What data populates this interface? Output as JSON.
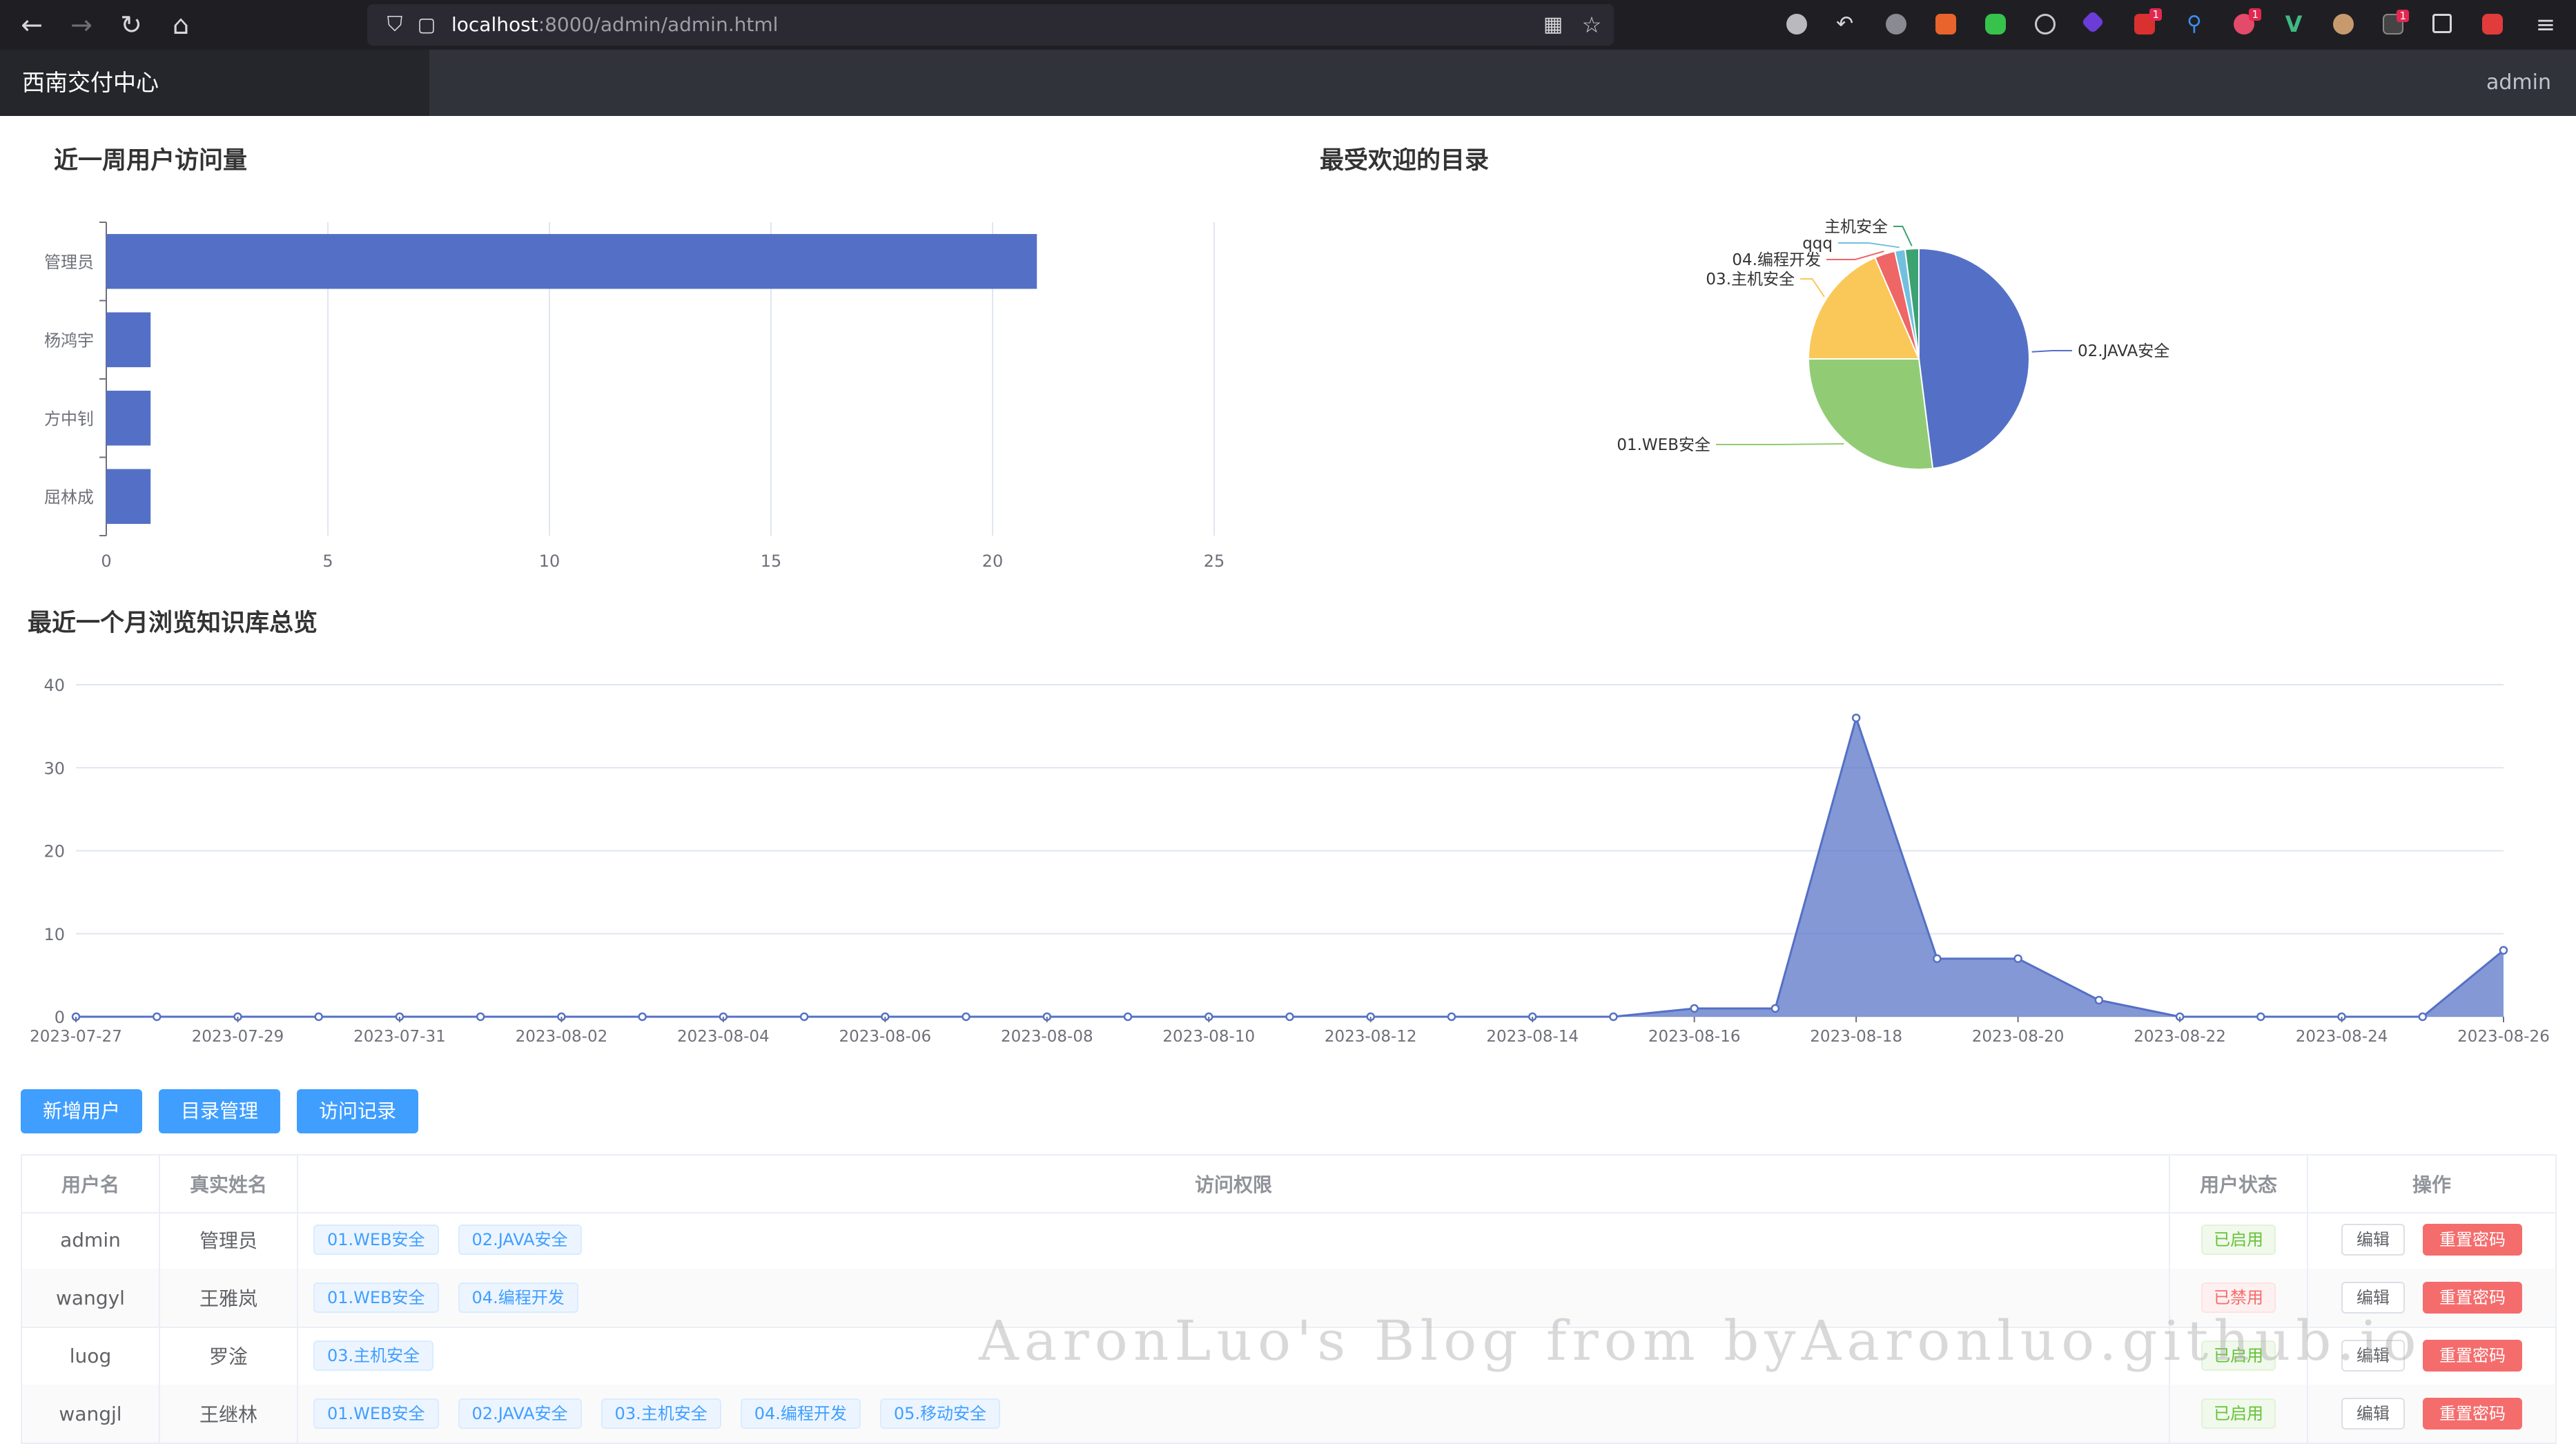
{
  "browser": {
    "url_host": "localhost",
    "url_rest": ":8000/admin/admin.html",
    "ext_badges": [
      "1",
      "1",
      "1"
    ]
  },
  "header": {
    "brand": "西南交付中心",
    "user": "admin"
  },
  "sections": {
    "weekly_title": "近一周用户访问量",
    "popular_title": "最受欢迎的目录",
    "monthly_title": "最近一个月浏览知识库总览"
  },
  "chart_data": [
    {
      "type": "bar",
      "orientation": "horizontal",
      "title": "近一周用户访问量",
      "categories": [
        "管理员",
        "杨鸿宇",
        "方中钊",
        "屈林成"
      ],
      "values": [
        21,
        1,
        1,
        1
      ],
      "xlim": [
        0,
        25
      ],
      "xticks": [
        0,
        5,
        10,
        15,
        20,
        25
      ],
      "color": "#5470c6",
      "grid": true
    },
    {
      "type": "pie",
      "title": "最受欢迎的目录",
      "slices": [
        {
          "label": "02.JAVA安全",
          "value": 48,
          "color": "#5470c6"
        },
        {
          "label": "01.WEB安全",
          "value": 27,
          "color": "#91cc75"
        },
        {
          "label": "03.主机安全",
          "value": 18.5,
          "color": "#fac858"
        },
        {
          "label": "04.编程开发",
          "value": 3,
          "color": "#ee6666"
        },
        {
          "label": "qqq",
          "value": 1.5,
          "color": "#73c0de"
        },
        {
          "label": "主机安全",
          "value": 2,
          "color": "#3ba272"
        }
      ]
    },
    {
      "type": "area",
      "title": "最近一个月浏览知识库总览",
      "x": [
        "2023-07-27",
        "2023-07-28",
        "2023-07-29",
        "2023-07-30",
        "2023-07-31",
        "2023-08-01",
        "2023-08-02",
        "2023-08-03",
        "2023-08-04",
        "2023-08-05",
        "2023-08-06",
        "2023-08-07",
        "2023-08-08",
        "2023-08-09",
        "2023-08-10",
        "2023-08-11",
        "2023-08-12",
        "2023-08-13",
        "2023-08-14",
        "2023-08-15",
        "2023-08-16",
        "2023-08-17",
        "2023-08-18",
        "2023-08-19",
        "2023-08-20",
        "2023-08-21",
        "2023-08-22",
        "2023-08-23",
        "2023-08-24",
        "2023-08-25",
        "2023-08-26"
      ],
      "xtick_labels": [
        "2023-07-27",
        "2023-07-29",
        "2023-07-31",
        "2023-08-02",
        "2023-08-04",
        "2023-08-06",
        "2023-08-08",
        "2023-08-10",
        "2023-08-12",
        "2023-08-14",
        "2023-08-16",
        "2023-08-18",
        "2023-08-20",
        "2023-08-22",
        "2023-08-24",
        "2023-08-26"
      ],
      "values": [
        0,
        0,
        0,
        0,
        0,
        0,
        0,
        0,
        0,
        0,
        0,
        0,
        0,
        0,
        0,
        0,
        0,
        0,
        0,
        0,
        1,
        1,
        36,
        7,
        7,
        2,
        0,
        0,
        0,
        0,
        8
      ],
      "ylim": [
        0,
        40
      ],
      "yticks": [
        0,
        10,
        20,
        30,
        40
      ],
      "color": "#5470c6",
      "grid": true
    }
  ],
  "actions": {
    "add_user": "新增用户",
    "catalog": "目录管理",
    "access_log": "访问记录"
  },
  "table": {
    "headers": [
      "用户名",
      "真实姓名",
      "访问权限",
      "用户状态",
      "操作"
    ],
    "edit_label": "编辑",
    "reset_label": "重置密码",
    "rows": [
      {
        "username": "admin",
        "realname": "管理员",
        "perms": [
          "01.WEB安全",
          "02.JAVA安全"
        ],
        "status": "已启用",
        "enabled": true
      },
      {
        "username": "wangyl",
        "realname": "王雅岚",
        "perms": [
          "01.WEB安全",
          "04.编程开发"
        ],
        "status": "已禁用",
        "enabled": false
      },
      {
        "username": "luog",
        "realname": "罗淦",
        "perms": [
          "03.主机安全"
        ],
        "status": "已启用",
        "enabled": true
      },
      {
        "username": "wangjl",
        "realname": "王继林",
        "perms": [
          "01.WEB安全",
          "02.JAVA安全",
          "03.主机安全",
          "04.编程开发",
          "05.移动安全"
        ],
        "status": "已启用",
        "enabled": true
      }
    ]
  },
  "watermark": "AaronLuo's Blog from byAaronluo.github.io"
}
